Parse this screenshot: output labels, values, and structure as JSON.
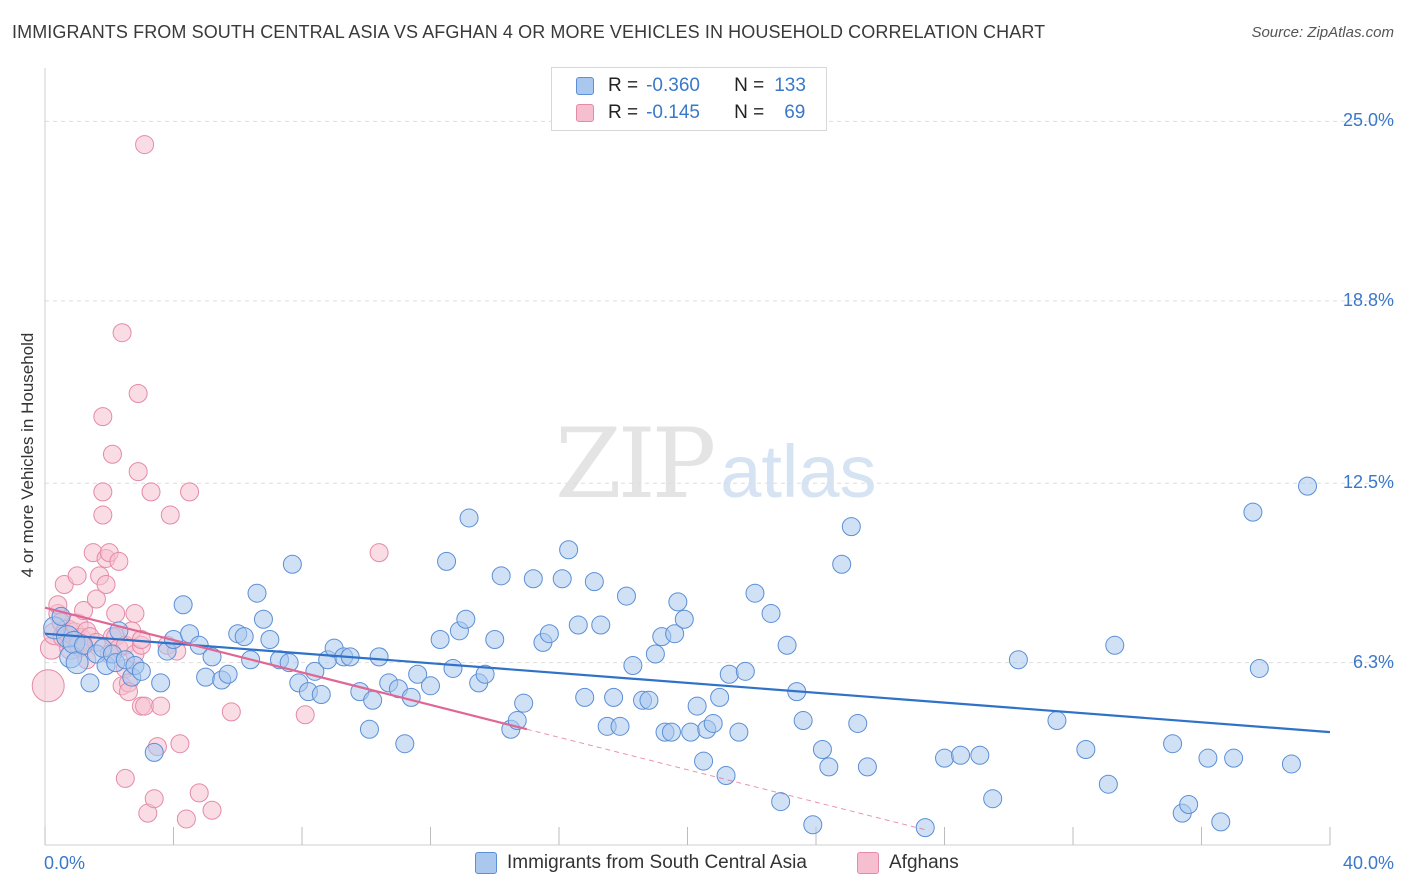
{
  "header": {
    "title": "IMMIGRANTS FROM SOUTH CENTRAL ASIA VS AFGHAN 4 OR MORE VEHICLES IN HOUSEHOLD CORRELATION CHART",
    "source": "Source: ZipAtlas.com"
  },
  "watermark": {
    "zip": "ZIP",
    "atlas": "atlas"
  },
  "legend": {
    "rows": [
      {
        "r_label": "R =",
        "r_value": "-0.360",
        "n_label": "N =",
        "n_value": "133"
      },
      {
        "r_label": "R =",
        "r_value": "-0.145",
        "n_label": "N =",
        "n_value": "69"
      }
    ]
  },
  "bottom_legend": {
    "blue": "Immigrants from South Central Asia",
    "pink": "Afghans"
  },
  "colors": {
    "blue_fill": "#aac8ee",
    "blue_stroke": "#5b8fd6",
    "blue_line": "#2f72c8",
    "pink_fill": "#f6bfd0",
    "pink_stroke": "#e48aa8",
    "pink_line": "#e06694",
    "axis_text": "#3a78c9",
    "grid": "#dddddd"
  },
  "chart_data": {
    "type": "scatter",
    "title": "IMMIGRANTS FROM SOUTH CENTRAL ASIA VS AFGHAN 4 OR MORE VEHICLES IN HOUSEHOLD CORRELATION CHART",
    "xlabel": "",
    "ylabel": "4 or more Vehicles in Household",
    "xlim": [
      0,
      40
    ],
    "ylim": [
      0,
      26.5
    ],
    "x_tick_labels": [
      "0.0%",
      "40.0%"
    ],
    "y_ticks": [
      6.3,
      12.5,
      18.8,
      25.0
    ],
    "y_tick_labels": [
      "6.3%",
      "12.5%",
      "18.8%",
      "25.0%"
    ],
    "grid": true,
    "legend_position": "top-center",
    "series": [
      {
        "name": "Immigrants from South Central Asia",
        "color": "#5b8fd6",
        "r": -0.36,
        "n": 133,
        "trend": {
          "x": [
            0,
            40
          ],
          "y": [
            7.3,
            3.9
          ]
        },
        "points": [
          [
            0.3,
            7.5
          ],
          [
            0.5,
            7.9
          ],
          [
            0.7,
            7.2
          ],
          [
            0.8,
            6.5
          ],
          [
            0.9,
            7.0
          ],
          [
            1.0,
            6.3
          ],
          [
            1.2,
            6.9
          ],
          [
            1.4,
            5.6
          ],
          [
            1.6,
            6.6
          ],
          [
            1.8,
            6.8
          ],
          [
            1.9,
            6.2
          ],
          [
            2.1,
            6.6
          ],
          [
            2.2,
            6.3
          ],
          [
            2.3,
            7.4
          ],
          [
            2.5,
            6.4
          ],
          [
            2.7,
            5.8
          ],
          [
            2.8,
            6.2
          ],
          [
            3.0,
            6.0
          ],
          [
            3.4,
            3.2
          ],
          [
            3.6,
            5.6
          ],
          [
            3.8,
            6.7
          ],
          [
            4.0,
            7.1
          ],
          [
            4.3,
            8.3
          ],
          [
            4.5,
            7.3
          ],
          [
            4.8,
            6.9
          ],
          [
            5.0,
            5.8
          ],
          [
            5.2,
            6.5
          ],
          [
            5.5,
            5.7
          ],
          [
            5.7,
            5.9
          ],
          [
            6.0,
            7.3
          ],
          [
            6.2,
            7.2
          ],
          [
            6.4,
            6.4
          ],
          [
            6.6,
            8.7
          ],
          [
            6.8,
            7.8
          ],
          [
            7.0,
            7.1
          ],
          [
            7.3,
            6.4
          ],
          [
            7.6,
            6.3
          ],
          [
            7.7,
            9.7
          ],
          [
            7.9,
            5.6
          ],
          [
            8.2,
            5.3
          ],
          [
            8.4,
            6.0
          ],
          [
            8.6,
            5.2
          ],
          [
            8.8,
            6.4
          ],
          [
            9.0,
            6.8
          ],
          [
            9.3,
            6.5
          ],
          [
            9.5,
            6.5
          ],
          [
            9.8,
            5.3
          ],
          [
            10.1,
            4.0
          ],
          [
            10.2,
            5.0
          ],
          [
            10.4,
            6.5
          ],
          [
            10.7,
            5.6
          ],
          [
            11.0,
            5.4
          ],
          [
            11.2,
            3.5
          ],
          [
            11.4,
            5.1
          ],
          [
            11.6,
            5.9
          ],
          [
            12.0,
            5.5
          ],
          [
            12.3,
            7.1
          ],
          [
            12.5,
            9.8
          ],
          [
            12.7,
            6.1
          ],
          [
            12.9,
            7.4
          ],
          [
            13.1,
            7.8
          ],
          [
            13.2,
            11.3
          ],
          [
            13.5,
            5.6
          ],
          [
            13.7,
            5.9
          ],
          [
            14.0,
            7.1
          ],
          [
            14.2,
            9.3
          ],
          [
            14.5,
            4.0
          ],
          [
            14.7,
            4.3
          ],
          [
            14.9,
            4.9
          ],
          [
            15.2,
            9.2
          ],
          [
            15.5,
            7.0
          ],
          [
            15.7,
            7.3
          ],
          [
            16.1,
            9.2
          ],
          [
            16.3,
            10.2
          ],
          [
            16.6,
            7.6
          ],
          [
            16.8,
            5.1
          ],
          [
            17.1,
            9.1
          ],
          [
            17.3,
            7.6
          ],
          [
            17.5,
            4.1
          ],
          [
            17.7,
            5.1
          ],
          [
            17.9,
            4.1
          ],
          [
            18.1,
            8.6
          ],
          [
            18.3,
            6.2
          ],
          [
            18.6,
            5.0
          ],
          [
            18.8,
            5.0
          ],
          [
            19.0,
            6.6
          ],
          [
            19.2,
            7.2
          ],
          [
            19.3,
            3.9
          ],
          [
            19.5,
            3.9
          ],
          [
            19.6,
            7.3
          ],
          [
            19.7,
            8.4
          ],
          [
            19.9,
            7.8
          ],
          [
            20.1,
            3.9
          ],
          [
            20.3,
            4.8
          ],
          [
            20.5,
            2.9
          ],
          [
            20.6,
            4.0
          ],
          [
            20.8,
            4.2
          ],
          [
            21.0,
            5.1
          ],
          [
            21.2,
            2.4
          ],
          [
            21.3,
            5.9
          ],
          [
            21.6,
            3.9
          ],
          [
            21.8,
            6.0
          ],
          [
            22.1,
            8.7
          ],
          [
            22.6,
            8.0
          ],
          [
            22.9,
            1.5
          ],
          [
            23.1,
            6.9
          ],
          [
            23.4,
            5.3
          ],
          [
            23.6,
            4.3
          ],
          [
            23.9,
            0.7
          ],
          [
            24.2,
            3.3
          ],
          [
            24.4,
            2.7
          ],
          [
            24.8,
            9.7
          ],
          [
            25.1,
            11.0
          ],
          [
            25.3,
            4.2
          ],
          [
            25.6,
            2.7
          ],
          [
            27.4,
            0.6
          ],
          [
            28.0,
            3.0
          ],
          [
            28.5,
            3.1
          ],
          [
            29.1,
            3.1
          ],
          [
            29.5,
            1.6
          ],
          [
            30.3,
            6.4
          ],
          [
            31.5,
            4.3
          ],
          [
            32.4,
            3.3
          ],
          [
            33.1,
            2.1
          ],
          [
            33.3,
            6.9
          ],
          [
            35.1,
            3.5
          ],
          [
            35.4,
            1.1
          ],
          [
            35.6,
            1.4
          ],
          [
            36.2,
            3.0
          ],
          [
            36.6,
            0.8
          ],
          [
            37.0,
            3.0
          ],
          [
            37.6,
            11.5
          ],
          [
            37.8,
            6.1
          ],
          [
            38.8,
            2.8
          ],
          [
            39.3,
            12.4
          ]
        ]
      },
      {
        "name": "Afghans",
        "color": "#e48aa8",
        "r": -0.145,
        "n": 69,
        "trend": {
          "x": [
            0,
            15
          ],
          "y": [
            8.2,
            4.0
          ]
        },
        "trend_extension": {
          "x": [
            15,
            27.5
          ],
          "y": [
            4.0,
            0.5
          ]
        },
        "points": [
          [
            0.1,
            5.5
          ],
          [
            0.2,
            6.8
          ],
          [
            0.3,
            7.3
          ],
          [
            0.4,
            8.0
          ],
          [
            0.5,
            7.7
          ],
          [
            0.6,
            7.2
          ],
          [
            0.6,
            9.0
          ],
          [
            0.7,
            7.4
          ],
          [
            0.8,
            6.8
          ],
          [
            0.9,
            7.3
          ],
          [
            1.0,
            7.6
          ],
          [
            1.0,
            9.3
          ],
          [
            1.1,
            7.1
          ],
          [
            1.2,
            8.1
          ],
          [
            1.3,
            7.4
          ],
          [
            1.3,
            6.4
          ],
          [
            1.4,
            7.2
          ],
          [
            1.5,
            10.1
          ],
          [
            1.6,
            7.0
          ],
          [
            1.6,
            8.5
          ],
          [
            1.7,
            9.3
          ],
          [
            1.8,
            12.2
          ],
          [
            1.8,
            11.4
          ],
          [
            1.8,
            14.8
          ],
          [
            1.9,
            9.0
          ],
          [
            1.9,
            9.9
          ],
          [
            2.0,
            10.1
          ],
          [
            2.0,
            6.6
          ],
          [
            2.1,
            7.2
          ],
          [
            2.1,
            13.5
          ],
          [
            2.2,
            7.2
          ],
          [
            2.2,
            8.0
          ],
          [
            2.3,
            9.8
          ],
          [
            2.3,
            6.8
          ],
          [
            2.4,
            5.5
          ],
          [
            2.4,
            17.7
          ],
          [
            2.5,
            6.9
          ],
          [
            2.5,
            6.1
          ],
          [
            2.5,
            2.3
          ],
          [
            2.6,
            5.6
          ],
          [
            2.6,
            5.3
          ],
          [
            2.7,
            7.4
          ],
          [
            2.8,
            6.6
          ],
          [
            2.8,
            8.0
          ],
          [
            2.9,
            12.9
          ],
          [
            2.9,
            15.6
          ],
          [
            3.0,
            6.9
          ],
          [
            3.0,
            7.1
          ],
          [
            3.0,
            4.8
          ],
          [
            3.1,
            24.2
          ],
          [
            3.1,
            4.8
          ],
          [
            3.2,
            1.1
          ],
          [
            3.3,
            12.2
          ],
          [
            3.4,
            1.6
          ],
          [
            3.5,
            3.4
          ],
          [
            3.6,
            4.8
          ],
          [
            3.8,
            6.9
          ],
          [
            3.9,
            11.4
          ],
          [
            4.1,
            6.7
          ],
          [
            4.2,
            3.5
          ],
          [
            4.4,
            0.9
          ],
          [
            4.5,
            12.2
          ],
          [
            4.8,
            1.8
          ],
          [
            5.2,
            1.2
          ],
          [
            5.8,
            4.6
          ],
          [
            8.1,
            4.5
          ],
          [
            10.4,
            10.1
          ],
          [
            0.4,
            8.3
          ],
          [
            1.1,
            6.9
          ]
        ]
      }
    ]
  }
}
